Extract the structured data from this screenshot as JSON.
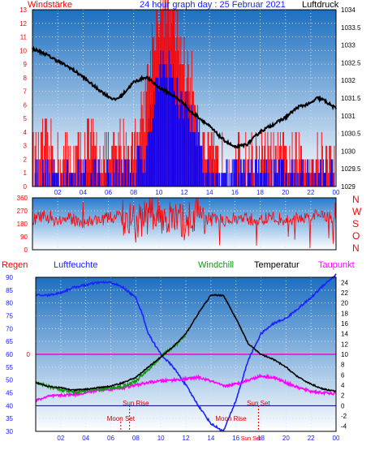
{
  "colors": {
    "wind_red": "#ff0000",
    "gust_blue": "#0000ff",
    "pressure_black": "#000000",
    "humidity_blue": "#1a22ff",
    "windchill_green": "#119911",
    "temp_black": "#000000",
    "dewpoint_magenta": "#ff00ff",
    "rain_red": "#ee0000",
    "sun_red": "#cc0000",
    "bg_top": "#1e78c8",
    "bg_bottom": "#ffffff"
  },
  "chart_data": [
    {
      "type": "line",
      "title": "24 hour graph day : 25 Februar 2021",
      "left_label": "Windstärke",
      "right_label": "Luftdruck",
      "x_ticks": [
        "02",
        "04",
        "06",
        "08",
        "10",
        "12",
        "14",
        "16",
        "18",
        "20",
        "22",
        "00"
      ],
      "y_left_ticks": [
        "0",
        "1",
        "2",
        "3",
        "4",
        "5",
        "6",
        "7",
        "8",
        "9",
        "10",
        "11",
        "12",
        "13"
      ],
      "y_left_range": [
        0,
        13
      ],
      "y_right_ticks": [
        "1029",
        "1029.5",
        "1030",
        "1030.5",
        "1031",
        "1031.5",
        "1032",
        "1032.5",
        "1033",
        "1033.5",
        "1034"
      ],
      "y_right_range": [
        1029,
        1034
      ],
      "series": [
        {
          "name": "Luftdruck",
          "axis": "right",
          "x": [
            0,
            1,
            2,
            3,
            4,
            5,
            6,
            6.5,
            7,
            8,
            9,
            10,
            11,
            12,
            12.5,
            13,
            14,
            15,
            16,
            17,
            18,
            19,
            20,
            21,
            22,
            22.5,
            23,
            24
          ],
          "values": [
            1032.9,
            1032.75,
            1032.55,
            1032.35,
            1032.1,
            1031.8,
            1031.55,
            1031.45,
            1031.55,
            1031.95,
            1032.1,
            1031.8,
            1031.6,
            1031.35,
            1031.1,
            1031.0,
            1030.7,
            1030.35,
            1030.1,
            1030.2,
            1030.55,
            1030.75,
            1030.95,
            1031.25,
            1031.35,
            1031.5,
            1031.45,
            1031.2
          ]
        },
        {
          "name": "Windstärke",
          "axis": "left",
          "x": [
            0,
            1,
            2,
            3,
            4,
            5,
            6,
            7,
            8,
            9,
            9.5,
            10,
            10.5,
            11,
            11.5,
            12,
            12.5,
            13,
            13.5,
            14,
            15,
            16,
            17,
            18,
            19,
            20,
            21,
            22,
            23,
            24
          ],
          "values": [
            1,
            1,
            1,
            1,
            1,
            1,
            1,
            1,
            1,
            3,
            6,
            8,
            9,
            8,
            7,
            6,
            5,
            4,
            2,
            1,
            1,
            1,
            1,
            1,
            1,
            1,
            1,
            1,
            1,
            1
          ]
        },
        {
          "name": "Böen",
          "axis": "left",
          "x": [
            0,
            1,
            2,
            3,
            4,
            5,
            6,
            7,
            8,
            9,
            9.5,
            10,
            10.5,
            11,
            11.5,
            12,
            12.5,
            13,
            13.5,
            14,
            15,
            16,
            17,
            18,
            19,
            20,
            21,
            22,
            23,
            24
          ],
          "values": [
            2,
            3,
            2,
            2,
            3,
            3,
            2,
            3,
            3,
            7,
            11,
            13,
            13,
            12,
            11,
            9,
            8,
            6,
            3,
            2,
            2,
            2,
            2,
            2,
            2,
            2,
            2,
            2,
            2,
            2
          ]
        }
      ]
    },
    {
      "type": "scatter",
      "left_ticks": [
        "360",
        "270",
        "180",
        "90",
        "0"
      ],
      "y_range": [
        0,
        360
      ],
      "right_labels": [
        "N",
        "W",
        "S",
        "O",
        "N"
      ],
      "series": [
        {
          "name": "Windrichtung",
          "x": [
            0,
            1,
            2,
            3,
            4,
            5,
            6,
            7,
            8,
            9,
            10,
            11,
            12,
            13,
            14,
            15,
            16,
            17,
            18,
            19,
            20,
            21,
            22,
            23,
            24
          ],
          "values": [
            210,
            230,
            200,
            215,
            190,
            205,
            220,
            240,
            180,
            230,
            250,
            210,
            190,
            260,
            220,
            200,
            215,
            210,
            205,
            225,
            200,
            215,
            230,
            240,
            220
          ]
        }
      ]
    },
    {
      "type": "line",
      "left_title": "Regen",
      "left_title2": "Luftfeuchte",
      "center_title": "Windchill",
      "center_title2": "Temperatur",
      "right_title": "Taupunkt",
      "y_left_ticks": [
        "30",
        "35",
        "40",
        "45",
        "50",
        "55",
        "60",
        "65",
        "70",
        "75",
        "80",
        "85",
        "90"
      ],
      "y_left_range": [
        30,
        90
      ],
      "y_right_ticks": [
        "-4",
        "-2",
        "0",
        "2",
        "4",
        "6",
        "8",
        "10",
        "12",
        "14",
        "16",
        "18",
        "20",
        "22",
        "24"
      ],
      "y_right_range": [
        -5,
        25
      ],
      "rain_zero_label": "0",
      "x_ticks": [
        "02",
        "04",
        "06",
        "08",
        "10",
        "12",
        "14",
        "16",
        "18",
        "20",
        "22",
        "00"
      ],
      "annotations": {
        "sun_rise": "Sun Rise",
        "sun_set": "Sun Set",
        "moon_set": "Moon Set",
        "moon_rise": "Moon Rise",
        "sun_set_bottom": "Sun Set"
      },
      "series": [
        {
          "name": "Luftfeuchte",
          "axis": "left",
          "x": [
            0,
            1,
            2,
            3,
            4,
            5,
            6,
            7,
            8,
            8.5,
            9,
            10,
            11,
            12,
            13,
            14,
            15,
            16,
            17,
            18,
            19,
            20,
            21,
            22,
            23,
            24
          ],
          "values": [
            83,
            83,
            84,
            86,
            87,
            88,
            88,
            86,
            82,
            76,
            68,
            60,
            55,
            48,
            40,
            33,
            30,
            42,
            58,
            68,
            72,
            74,
            78,
            82,
            87,
            91
          ]
        },
        {
          "name": "Temperatur",
          "axis": "right",
          "x": [
            0,
            1,
            2,
            3,
            4,
            5,
            6,
            7,
            8,
            9,
            10,
            11,
            12,
            13,
            14,
            15,
            16,
            17,
            18,
            19,
            20,
            21,
            22,
            23,
            24
          ],
          "values": [
            4.5,
            3.8,
            3.5,
            3,
            3.2,
            3.5,
            3.8,
            4.5,
            5.5,
            7.5,
            9.5,
            11.5,
            14,
            18,
            21.5,
            21.5,
            17,
            12,
            10,
            9,
            7.5,
            5.5,
            4.2,
            3.2,
            2.8
          ]
        },
        {
          "name": "Windchill",
          "axis": "right",
          "x": [
            0,
            1,
            2,
            3,
            4,
            5,
            6,
            7,
            8,
            9,
            10,
            11,
            12
          ],
          "values": [
            4.5,
            3.8,
            3,
            2.6,
            2.9,
            3.2,
            3.4,
            3.8,
            4.8,
            7,
            9.5,
            11.5,
            13.5
          ]
        },
        {
          "name": "Taupunkt",
          "axis": "right",
          "x": [
            0,
            1,
            2,
            3,
            4,
            5,
            6,
            7,
            8,
            9,
            10,
            11,
            12,
            13,
            14,
            15,
            16,
            17,
            18,
            19,
            20,
            21,
            22,
            23,
            24
          ],
          "values": [
            1,
            1.8,
            2,
            2.2,
            2.5,
            3,
            3.2,
            3.5,
            4,
            4.5,
            4.8,
            5,
            5.2,
            5.5,
            4.8,
            3.8,
            4.2,
            5,
            5.8,
            5.5,
            4.5,
            3.5,
            2.8,
            2.5,
            2.3
          ]
        },
        {
          "name": "Regen",
          "axis": "rain",
          "x": [
            0,
            24
          ],
          "values": [
            0,
            0
          ]
        }
      ]
    }
  ]
}
